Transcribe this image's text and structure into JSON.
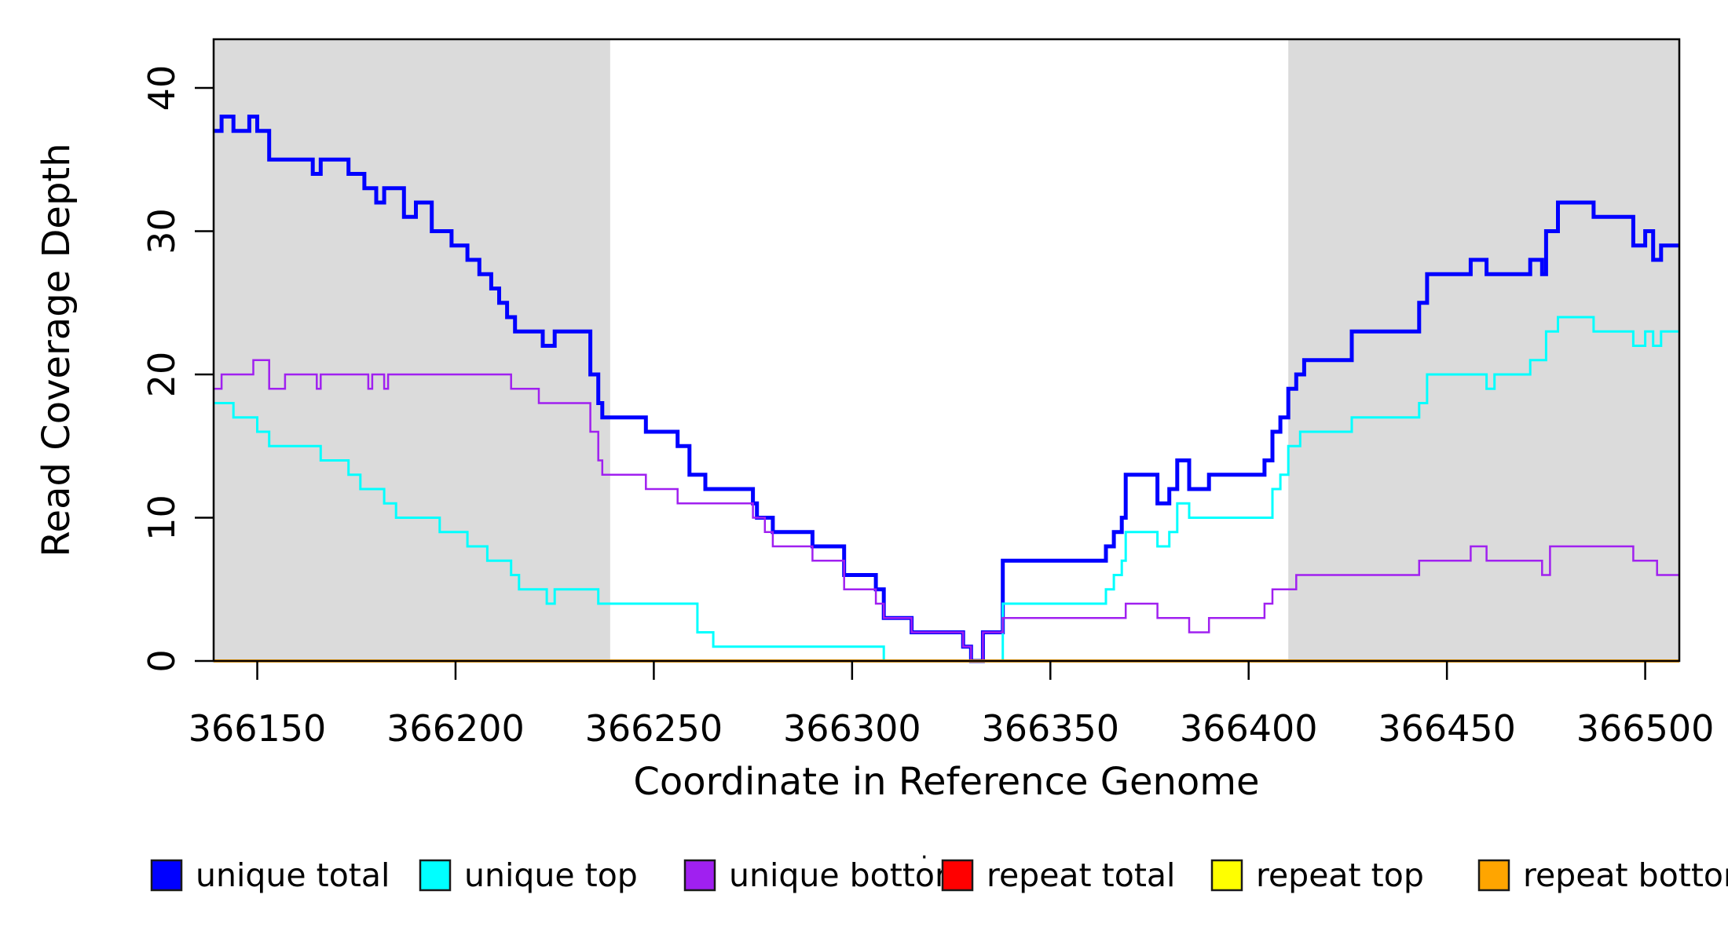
{
  "figure": {
    "background": "#FFFFFF"
  },
  "y_axis": {
    "title": "Read Coverage Depth",
    "tick_labels": [
      "0",
      "10",
      "20",
      "30",
      "40"
    ],
    "ticks": [
      0,
      10,
      20,
      30,
      40
    ]
  },
  "x_axis": {
    "title": "Coordinate in Reference Genome",
    "tick_labels": [
      "366150",
      "366200",
      "366250",
      "366300",
      "366350",
      "366400",
      "366450",
      "366500"
    ],
    "ticks": [
      366150,
      366200,
      366250,
      366300,
      366350,
      366400,
      366450,
      366500
    ]
  },
  "shaded_regions": [
    {
      "from": 366139,
      "to": 366239,
      "color": "#DBDBDB"
    },
    {
      "from": 366410,
      "to": 366508.6,
      "color": "#DBDBDB"
    }
  ],
  "legend": {
    "items": [
      {
        "label": "unique total",
        "color": "#0000FF"
      },
      {
        "label": "unique top",
        "color": "#00FFFF"
      },
      {
        "label": "unique bottom",
        "color": "#A020F0"
      },
      {
        "label": "repeat total",
        "color": "#FF0000"
      },
      {
        "label": "repeat top",
        "color": "#FFFF00"
      },
      {
        "label": "repeat bottom",
        "color": "#FFA500"
      }
    ],
    "stray_dot": "·"
  },
  "chart_data": {
    "type": "line",
    "subtype": "step",
    "title": "",
    "xlabel": "Coordinate in Reference Genome",
    "ylabel": "Read Coverage Depth",
    "xlim": [
      366139,
      366508.6
    ],
    "ylim": [
      0,
      43.4
    ],
    "x_ticks": [
      366150,
      366200,
      366250,
      366300,
      366350,
      366400,
      366450,
      366500
    ],
    "y_ticks": [
      0,
      10,
      20,
      30,
      40
    ],
    "grid": false,
    "legend_position": "bottom",
    "draw_order": [
      3,
      4,
      0,
      1,
      2,
      5
    ],
    "series": [
      {
        "name": "unique total",
        "color": "#0000FF",
        "width": 5,
        "steps": [
          [
            366139,
            37
          ],
          [
            366141,
            38
          ],
          [
            366144,
            37
          ],
          [
            366148,
            38
          ],
          [
            366150,
            37
          ],
          [
            366153,
            35
          ],
          [
            366164,
            34
          ],
          [
            366166,
            35
          ],
          [
            366173,
            34
          ],
          [
            366177,
            33
          ],
          [
            366180,
            32
          ],
          [
            366182,
            33
          ],
          [
            366187,
            31
          ],
          [
            366190,
            32
          ],
          [
            366194,
            30
          ],
          [
            366199,
            29
          ],
          [
            366203,
            28
          ],
          [
            366206,
            27
          ],
          [
            366209,
            26
          ],
          [
            366211,
            25
          ],
          [
            366213,
            24
          ],
          [
            366215,
            23
          ],
          [
            366222,
            22
          ],
          [
            366225,
            23
          ],
          [
            366234,
            20
          ],
          [
            366236,
            18
          ],
          [
            366237,
            17
          ],
          [
            366248,
            16
          ],
          [
            366256,
            15
          ],
          [
            366259,
            13
          ],
          [
            366263,
            12
          ],
          [
            366275,
            11
          ],
          [
            366276,
            10
          ],
          [
            366280,
            9
          ],
          [
            366290,
            8
          ],
          [
            366298,
            6
          ],
          [
            366306,
            5
          ],
          [
            366308,
            3
          ],
          [
            366315,
            2
          ],
          [
            366328,
            1
          ],
          [
            366330,
            0
          ],
          [
            366333,
            2
          ],
          [
            366338,
            7
          ],
          [
            366364,
            8
          ],
          [
            366366,
            9
          ],
          [
            366368,
            10
          ],
          [
            366369,
            13
          ],
          [
            366377,
            11
          ],
          [
            366380,
            12
          ],
          [
            366382,
            14
          ],
          [
            366385,
            12
          ],
          [
            366390,
            13
          ],
          [
            366404,
            14
          ],
          [
            366406,
            16
          ],
          [
            366408,
            17
          ],
          [
            366410,
            19
          ],
          [
            366412,
            20
          ],
          [
            366414,
            21
          ],
          [
            366426,
            23
          ],
          [
            366443,
            25
          ],
          [
            366445,
            27
          ],
          [
            366456,
            28
          ],
          [
            366460,
            27
          ],
          [
            366471,
            28
          ],
          [
            366474,
            27
          ],
          [
            366475,
            30
          ],
          [
            366478,
            32
          ],
          [
            366487,
            31
          ],
          [
            366497,
            29
          ],
          [
            366500,
            30
          ],
          [
            366502,
            28
          ],
          [
            366504,
            29
          ]
        ]
      },
      {
        "name": "unique top",
        "color": "#00FFFF",
        "width": 3,
        "steps": [
          [
            366139,
            18
          ],
          [
            366144,
            17
          ],
          [
            366150,
            16
          ],
          [
            366153,
            15
          ],
          [
            366166,
            14
          ],
          [
            366173,
            13
          ],
          [
            366176,
            12
          ],
          [
            366182,
            11
          ],
          [
            366185,
            10
          ],
          [
            366196,
            9
          ],
          [
            366203,
            8
          ],
          [
            366208,
            7
          ],
          [
            366214,
            6
          ],
          [
            366216,
            5
          ],
          [
            366223,
            4
          ],
          [
            366225,
            5
          ],
          [
            366236,
            4
          ],
          [
            366261,
            2
          ],
          [
            366265,
            1
          ],
          [
            366308,
            0
          ],
          [
            366338,
            4
          ],
          [
            366364,
            5
          ],
          [
            366366,
            6
          ],
          [
            366368,
            7
          ],
          [
            366369,
            9
          ],
          [
            366377,
            8
          ],
          [
            366380,
            9
          ],
          [
            366382,
            11
          ],
          [
            366385,
            10
          ],
          [
            366406,
            12
          ],
          [
            366408,
            13
          ],
          [
            366410,
            15
          ],
          [
            366413,
            16
          ],
          [
            366426,
            17
          ],
          [
            366443,
            18
          ],
          [
            366445,
            20
          ],
          [
            366460,
            19
          ],
          [
            366462,
            20
          ],
          [
            366471,
            21
          ],
          [
            366475,
            23
          ],
          [
            366478,
            24
          ],
          [
            366487,
            23
          ],
          [
            366497,
            22
          ],
          [
            366500,
            23
          ],
          [
            366502,
            22
          ],
          [
            366504,
            23
          ]
        ]
      },
      {
        "name": "unique bottom",
        "color": "#A020F0",
        "width": 2.5,
        "steps": [
          [
            366139,
            19
          ],
          [
            366141,
            20
          ],
          [
            366149,
            21
          ],
          [
            366153,
            19
          ],
          [
            366157,
            20
          ],
          [
            366165,
            19
          ],
          [
            366166,
            20
          ],
          [
            366178,
            19
          ],
          [
            366179,
            20
          ],
          [
            366182,
            19
          ],
          [
            366183,
            20
          ],
          [
            366214,
            19
          ],
          [
            366221,
            18
          ],
          [
            366234,
            16
          ],
          [
            366236,
            14
          ],
          [
            366237,
            13
          ],
          [
            366248,
            12
          ],
          [
            366256,
            11
          ],
          [
            366275,
            10
          ],
          [
            366278,
            9
          ],
          [
            366280,
            8
          ],
          [
            366290,
            7
          ],
          [
            366298,
            5
          ],
          [
            366306,
            4
          ],
          [
            366308,
            3
          ],
          [
            366315,
            2
          ],
          [
            366328,
            1
          ],
          [
            366330,
            0
          ],
          [
            366333,
            2
          ],
          [
            366338,
            3
          ],
          [
            366369,
            4
          ],
          [
            366377,
            3
          ],
          [
            366385,
            2
          ],
          [
            366390,
            3
          ],
          [
            366404,
            4
          ],
          [
            366406,
            5
          ],
          [
            366412,
            6
          ],
          [
            366443,
            7
          ],
          [
            366456,
            8
          ],
          [
            366460,
            7
          ],
          [
            366474,
            6
          ],
          [
            366476,
            8
          ],
          [
            366497,
            7
          ],
          [
            366503,
            6
          ]
        ]
      },
      {
        "name": "repeat total",
        "color": "#FF0000",
        "width": 3,
        "steps": [
          [
            366139,
            0
          ]
        ]
      },
      {
        "name": "repeat top",
        "color": "#FFFF00",
        "width": 3,
        "steps": [
          [
            366139,
            0
          ]
        ]
      },
      {
        "name": "repeat bottom",
        "color": "#FFA500",
        "width": 4,
        "steps": [
          [
            366139,
            0
          ]
        ]
      }
    ]
  }
}
